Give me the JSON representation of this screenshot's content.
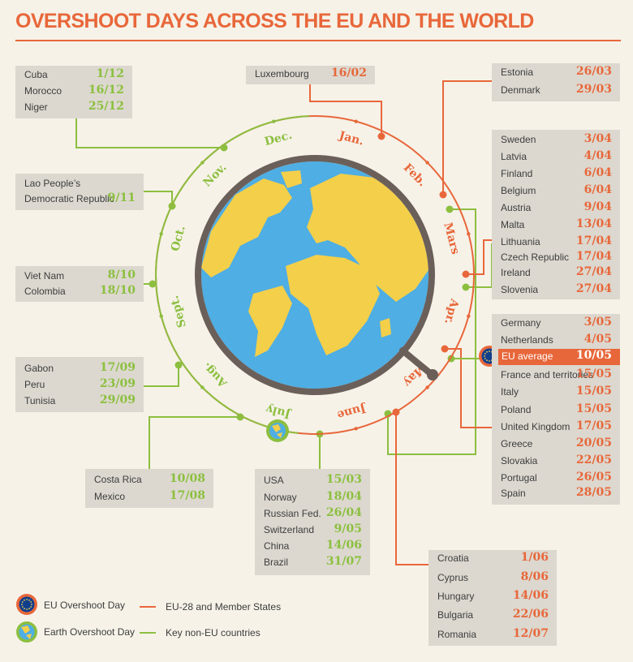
{
  "title": "OVERSHOOT DAYS ACROSS THE EU AND THE WORLD",
  "months": [
    "Jan.",
    "Feb.",
    "Mars",
    "Apr.",
    "May",
    "June",
    "July",
    "Aug.",
    "Sept.",
    "Oct.",
    "Nov.",
    "Dec."
  ],
  "colors": {
    "eu": "#e8673a",
    "non_eu": "#8cbf3f",
    "ocean": "#4faee3",
    "land": "#f4cf4a",
    "ring": "#6b5f5a",
    "box": "#dcd8cf",
    "eu_flag": "#123f8c"
  },
  "legend": {
    "eu_day": "EU Overshoot Day",
    "earth_day": "Earth Overshoot Day",
    "eu_line": "EU-28 and Member States",
    "non_eu_line": "Key non-EU countries"
  },
  "boxes": {
    "cuba": [
      {
        "name": "Cuba",
        "date": "1/12"
      },
      {
        "name": "Morocco",
        "date": "16/12"
      },
      {
        "name": "Niger",
        "date": "25/12"
      }
    ],
    "luxembourg": [
      {
        "name": "Luxembourg",
        "date": "16/02"
      }
    ],
    "estonia": [
      {
        "name": "Estonia",
        "date": "26/03"
      },
      {
        "name": "Denmark",
        "date": "29/03"
      }
    ],
    "lao": [
      {
        "name": "Lao People’s",
        "date": ""
      },
      {
        "name": "Democratic Republic",
        "date": "9/11"
      }
    ],
    "april": [
      {
        "name": "Sweden",
        "date": "3/04"
      },
      {
        "name": "Latvia",
        "date": "4/04"
      },
      {
        "name": "Finland",
        "date": "6/04"
      },
      {
        "name": "Belgium",
        "date": "6/04"
      },
      {
        "name": "Austria",
        "date": "9/04"
      },
      {
        "name": "Malta",
        "date": "13/04"
      },
      {
        "name": "Lithuania",
        "date": "17/04"
      },
      {
        "name": "Czech Republic",
        "date": "17/04"
      },
      {
        "name": "Ireland",
        "date": "27/04"
      },
      {
        "name": "Slovenia",
        "date": "27/04"
      }
    ],
    "vietnam": [
      {
        "name": "Viet Nam",
        "date": "8/10"
      },
      {
        "name": "Colombia",
        "date": "18/10"
      }
    ],
    "may": [
      {
        "name": "Germany",
        "date": "3/05"
      },
      {
        "name": "Netherlands",
        "date": "4/05"
      },
      {
        "name": "EU average",
        "date": "10/05"
      },
      {
        "name": "France and territories",
        "date": "15/05"
      },
      {
        "name": "Italy",
        "date": "15/05"
      },
      {
        "name": "Poland",
        "date": "15/05"
      },
      {
        "name": "United Kingdom",
        "date": "17/05"
      },
      {
        "name": "Greece",
        "date": "20/05"
      },
      {
        "name": "Slovakia",
        "date": "22/05"
      },
      {
        "name": "Portugal",
        "date": "26/05"
      },
      {
        "name": "Spain",
        "date": "28/05"
      }
    ],
    "gabon": [
      {
        "name": "Gabon",
        "date": "17/09"
      },
      {
        "name": "Peru",
        "date": "23/09"
      },
      {
        "name": "Tunisia",
        "date": "29/09"
      }
    ],
    "costarica": [
      {
        "name": "Costa Rica",
        "date": "10/08"
      },
      {
        "name": "Mexico",
        "date": "17/08"
      }
    ],
    "usa": [
      {
        "name": "USA",
        "date": "15/03"
      },
      {
        "name": "Norway",
        "date": "18/04"
      },
      {
        "name": "Russian Fed.",
        "date": "26/04"
      },
      {
        "name": "Switzerland",
        "date": "9/05"
      },
      {
        "name": "China",
        "date": "14/06"
      },
      {
        "name": "Brazil",
        "date": "31/07"
      }
    ],
    "croatia": [
      {
        "name": "Croatia",
        "date": "1/06"
      },
      {
        "name": "Cyprus",
        "date": "8/06"
      },
      {
        "name": "Hungary",
        "date": "14/06"
      },
      {
        "name": "Bulgaria",
        "date": "22/06"
      },
      {
        "name": "Romania",
        "date": "12/07"
      }
    ]
  }
}
